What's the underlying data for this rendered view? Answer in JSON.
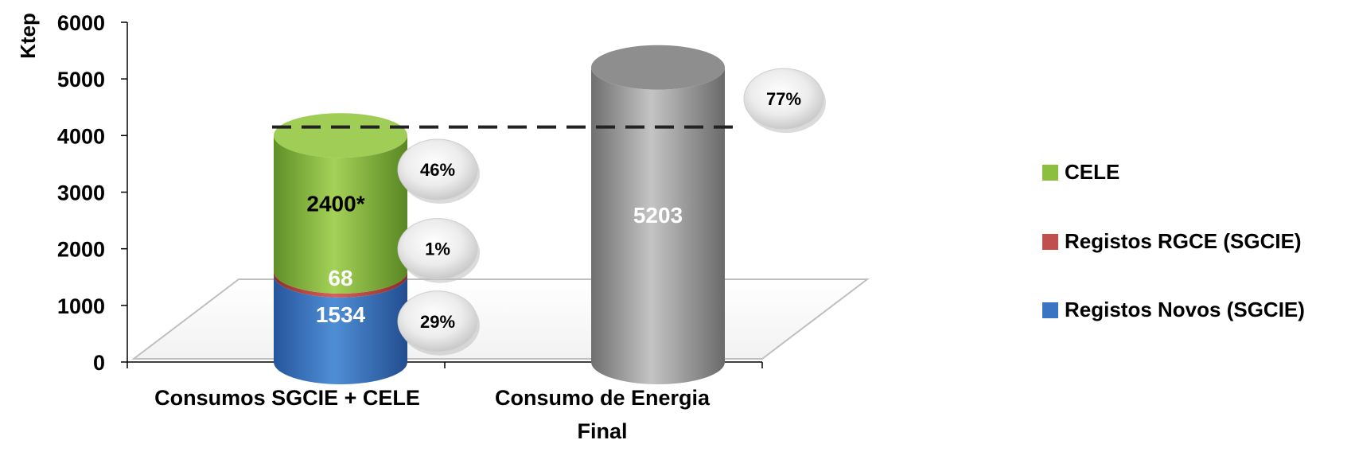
{
  "chart_data": {
    "type": "bar",
    "stacked": true,
    "three_d": "cylinder",
    "ylabel": "Ktep",
    "ylim": [
      0,
      6000
    ],
    "yticks": [
      "0",
      "1000",
      "2000",
      "3000",
      "4000",
      "5000",
      "6000"
    ],
    "categories": [
      "Consumos SGCIE + CELE",
      "Consumo de Energia Final"
    ],
    "category_lines": [
      [
        "Consumos SGCIE + CELE"
      ],
      [
        "Consumo de Energia",
        "Final"
      ]
    ],
    "series": [
      {
        "name": "Registos Novos (SGCIE)",
        "color": "#3a74c2",
        "values": [
          1534,
          0
        ],
        "labels": [
          "1534",
          ""
        ]
      },
      {
        "name": "Registos RGCE (SGCIE)",
        "color": "#c0504d",
        "values": [
          68,
          0
        ],
        "labels": [
          "68",
          ""
        ]
      },
      {
        "name": "CELE",
        "color": "#8cbf3f",
        "values": [
          2400,
          0
        ],
        "labels": [
          "2400*",
          ""
        ]
      },
      {
        "name": "",
        "color": "#999999",
        "values": [
          0,
          5203
        ],
        "labels": [
          "",
          "5203"
        ]
      }
    ],
    "legend": {
      "position": "right",
      "entries": [
        {
          "name": "CELE",
          "color": "#8cbf3f"
        },
        {
          "name": "Registos RGCE (SGCIE)",
          "color": "#c0504d"
        },
        {
          "name": "Registos Novos (SGCIE)",
          "color": "#3a74c2"
        }
      ]
    },
    "reference_line": {
      "value": 4150,
      "style": "dashed"
    },
    "annotations": [
      {
        "text": "29%",
        "y": 720
      },
      {
        "text": "1%",
        "y": 2000
      },
      {
        "text": "46%",
        "y": 3400
      },
      {
        "text": "77%",
        "y": 4650
      }
    ],
    "grid": false
  }
}
